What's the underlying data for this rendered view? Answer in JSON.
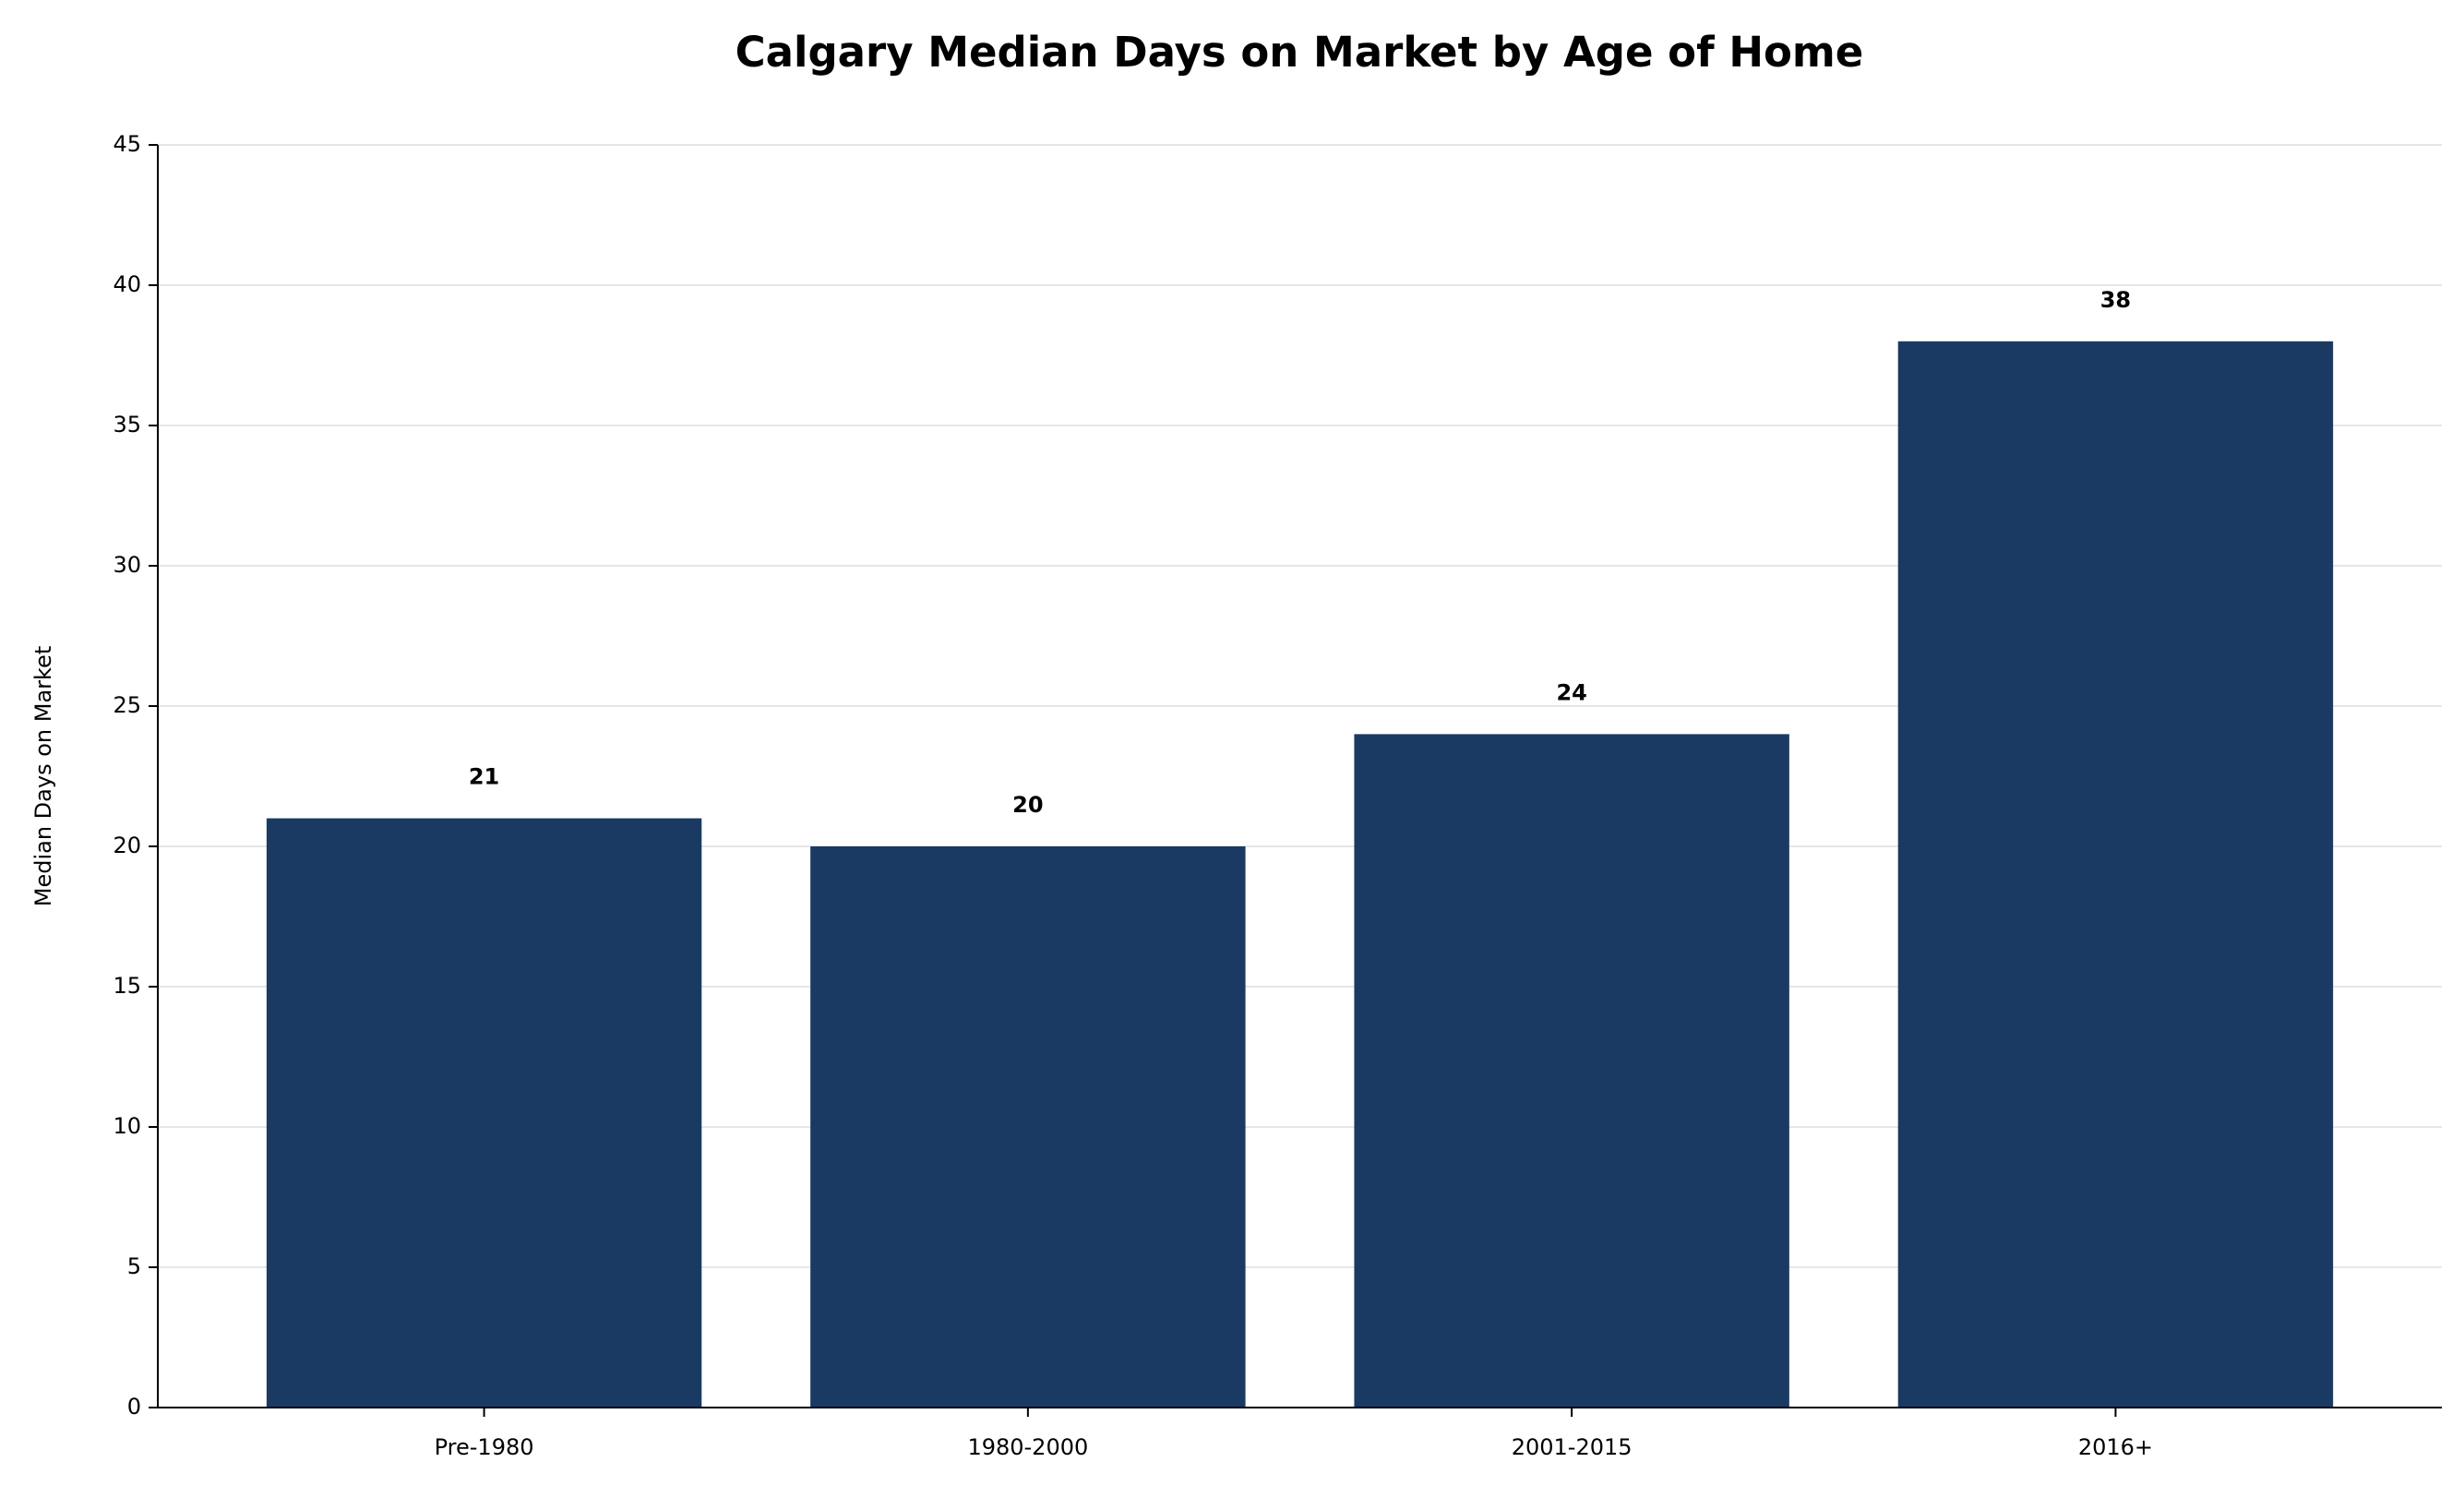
{
  "chart_data": {
    "type": "bar",
    "title": "Calgary Median Days on Market by Age of Home",
    "ylabel": "Median Days on Market",
    "categories": [
      "Pre-1980",
      "1980-2000",
      "2001-2015",
      "2016+"
    ],
    "values": [
      21,
      20,
      24,
      38
    ],
    "color": "#1a3a63",
    "ylim": [
      0,
      45
    ],
    "yticks": [
      0,
      5,
      10,
      15,
      20,
      25,
      30,
      35,
      40,
      45
    ],
    "grid": true
  }
}
